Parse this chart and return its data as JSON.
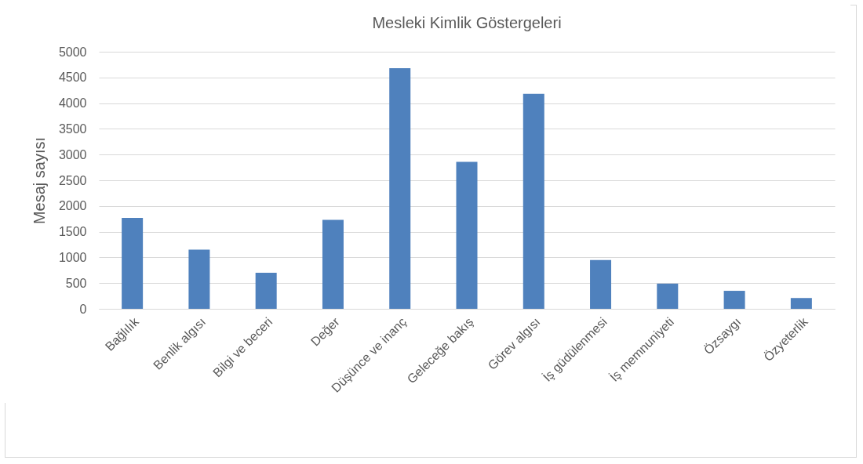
{
  "chart_data": {
    "type": "bar",
    "title": "Mesleki Kimlik Göstergeleri",
    "ylabel": "Mesaj sayısı",
    "categories": [
      "Bağlılık",
      "Benlik algısı",
      "Bilgi ve beceri",
      "Değer",
      "Düşünce ve inanç",
      "Geleceğe bakış",
      "Görev algısı",
      "İş güdülenmesi",
      "İş memnuniyeti",
      "Özsaygı",
      "Özyeterlik"
    ],
    "values": [
      1770,
      1150,
      700,
      1730,
      4680,
      2860,
      4180,
      950,
      490,
      350,
      210
    ],
    "color": "#4f81bd",
    "ylim": [
      0,
      5000
    ],
    "yticks": [
      0,
      500,
      1000,
      1500,
      2000,
      2500,
      3000,
      3500,
      4000,
      4500,
      5000
    ],
    "grid": "y"
  }
}
